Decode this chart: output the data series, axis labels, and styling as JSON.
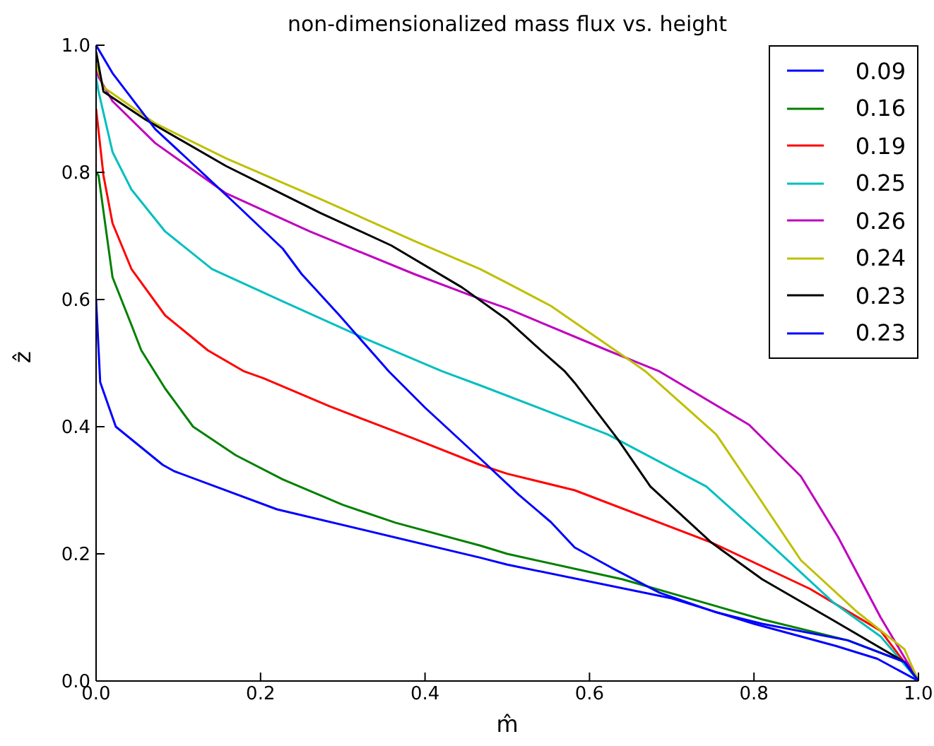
{
  "chart_data": {
    "type": "line",
    "title": "non-dimensionalized mass flux vs. height",
    "xlabel": "m̂",
    "ylabel": "ẑ",
    "xlim": [
      0,
      1
    ],
    "ylim": [
      0,
      1
    ],
    "xticks": [
      {
        "value": 0,
        "label": "0.0"
      },
      {
        "value": 0.2,
        "label": "0.2"
      },
      {
        "value": 0.4,
        "label": "0.4"
      },
      {
        "value": 0.6,
        "label": "0.6"
      },
      {
        "value": 0.8,
        "label": "0.8"
      },
      {
        "value": 1,
        "label": "1.0"
      }
    ],
    "yticks": [
      {
        "value": 0,
        "label": "0.0"
      },
      {
        "value": 0.2,
        "label": "0.2"
      },
      {
        "value": 0.4,
        "label": "0.4"
      },
      {
        "value": 0.6,
        "label": "0.6"
      },
      {
        "value": 0.8,
        "label": "0.8"
      },
      {
        "value": 1,
        "label": "1.0"
      }
    ],
    "grid": false,
    "legend": "top right",
    "marker": "none",
    "line_style": "solid",
    "series": [
      {
        "name": "0.09",
        "color": "#0000ff",
        "x": [
          0,
          0.005,
          0.024,
          0.081,
          0.095,
          0.22,
          0.467,
          0.5,
          0.7,
          0.8,
          0.9,
          0.95,
          1
        ],
        "values": [
          0.6,
          0.47,
          0.4,
          0.34,
          0.33,
          0.27,
          0.194,
          0.183,
          0.13,
          0.09,
          0.055,
          0.035,
          0
        ]
      },
      {
        "name": "0.16",
        "color": "#008000",
        "x": [
          0,
          0.003,
          0.02,
          0.043,
          0.055,
          0.084,
          0.118,
          0.17,
          0.227,
          0.3,
          0.364,
          0.467,
          0.5,
          0.64,
          0.81,
          0.914,
          0.983,
          1
        ],
        "values": [
          0.8,
          0.795,
          0.635,
          0.56,
          0.52,
          0.46,
          0.4,
          0.355,
          0.317,
          0.277,
          0.249,
          0.213,
          0.2,
          0.16,
          0.097,
          0.064,
          0.03,
          0
        ]
      },
      {
        "name": "0.19",
        "color": "#ff0000",
        "x": [
          0,
          0.009,
          0.02,
          0.043,
          0.084,
          0.136,
          0.18,
          0.204,
          0.284,
          0.387,
          0.467,
          0.5,
          0.582,
          0.748,
          0.868,
          0.954,
          1
        ],
        "values": [
          0.9,
          0.795,
          0.72,
          0.648,
          0.575,
          0.52,
          0.487,
          0.476,
          0.432,
          0.381,
          0.34,
          0.326,
          0.3,
          0.218,
          0.145,
          0.079,
          0
        ]
      },
      {
        "name": "0.25",
        "color": "#00bfbf",
        "x": [
          0,
          0.003,
          0.02,
          0.043,
          0.084,
          0.141,
          0.227,
          0.33,
          0.421,
          0.467,
          0.622,
          0.742,
          0.81,
          0.897,
          0.954,
          1
        ],
        "values": [
          0.95,
          0.927,
          0.832,
          0.773,
          0.707,
          0.648,
          0.597,
          0.537,
          0.487,
          0.465,
          0.388,
          0.306,
          0.227,
          0.123,
          0.07,
          0
        ]
      },
      {
        "name": "0.26",
        "color": "#bf00bf",
        "x": [
          0,
          0.003,
          0.02,
          0.072,
          0.158,
          0.26,
          0.387,
          0.467,
          0.5,
          0.622,
          0.685,
          0.794,
          0.857,
          0.902,
          0.954,
          1
        ],
        "values": [
          0.96,
          0.95,
          0.912,
          0.846,
          0.767,
          0.707,
          0.64,
          0.601,
          0.586,
          0.52,
          0.487,
          0.403,
          0.322,
          0.227,
          0.1,
          0
        ]
      },
      {
        "name": "0.24",
        "color": "#bfbf00",
        "x": [
          0,
          0.009,
          0.072,
          0.158,
          0.273,
          0.387,
          0.467,
          0.5,
          0.553,
          0.656,
          0.668,
          0.754,
          0.8,
          0.857,
          0.926,
          0.983,
          1
        ],
        "values": [
          0.97,
          0.934,
          0.877,
          0.822,
          0.758,
          0.692,
          0.648,
          0.626,
          0.59,
          0.498,
          0.487,
          0.388,
          0.3,
          0.19,
          0.108,
          0.05,
          0
        ]
      },
      {
        "name": "0.23",
        "color": "#000000",
        "x": [
          0,
          0.009,
          0.06,
          0.158,
          0.273,
          0.359,
          0.445,
          0.5,
          0.541,
          0.57,
          0.582,
          0.634,
          0.674,
          0.748,
          0.81,
          0.897,
          0.983,
          1
        ],
        "values": [
          0.99,
          0.927,
          0.883,
          0.81,
          0.736,
          0.685,
          0.619,
          0.568,
          0.52,
          0.487,
          0.469,
          0.381,
          0.306,
          0.218,
          0.16,
          0.095,
          0.03,
          0
        ]
      },
      {
        "name": "0.23",
        "color": "#0000ff",
        "x": [
          0,
          0.02,
          0.072,
          0.112,
          0.17,
          0.227,
          0.25,
          0.296,
          0.356,
          0.4,
          0.467,
          0.514,
          0.553,
          0.582,
          0.627,
          0.685,
          0.754,
          0.81,
          0.914,
          0.983,
          1
        ],
        "values": [
          1,
          0.956,
          0.868,
          0.82,
          0.75,
          0.68,
          0.64,
          0.575,
          0.487,
          0.43,
          0.35,
          0.293,
          0.25,
          0.21,
          0.178,
          0.139,
          0.108,
          0.09,
          0.064,
          0.03,
          0
        ]
      }
    ]
  }
}
